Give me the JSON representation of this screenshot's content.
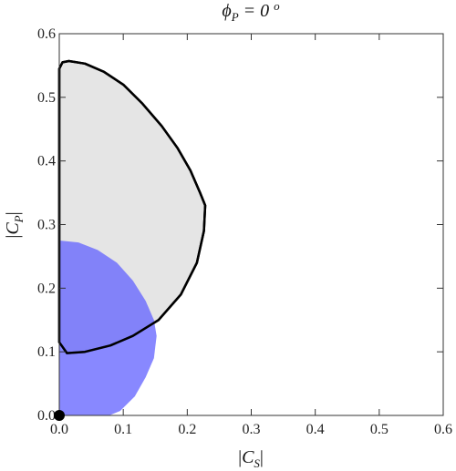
{
  "chart_data": {
    "type": "region",
    "title": "ϕ_P = 0 °",
    "xlabel": "|C_S|",
    "ylabel": "|C_P|",
    "xlim": [
      0,
      0.6
    ],
    "ylim": [
      0,
      0.6
    ],
    "x_ticks": [
      0.0,
      0.1,
      0.2,
      0.3,
      0.4,
      0.5,
      0.6
    ],
    "y_ticks": [
      0.0,
      0.1,
      0.2,
      0.3,
      0.4,
      0.5,
      0.6
    ],
    "x_tick_labels": [
      "0.0",
      "0.1",
      "0.2",
      "0.3",
      "0.4",
      "0.5",
      "0.6"
    ],
    "y_tick_labels": [
      "0.0",
      "0.1",
      "0.2",
      "0.3",
      "0.4",
      "0.5",
      "0.6"
    ],
    "grid": false,
    "series": [
      {
        "kind": "filled-region-outlined",
        "fill": "#e5e5e5",
        "stroke": "#000000",
        "points": [
          [
            0.0,
            0.115
          ],
          [
            0.0,
            0.545
          ],
          [
            0.005,
            0.555
          ],
          [
            0.015,
            0.557
          ],
          [
            0.04,
            0.553
          ],
          [
            0.07,
            0.54
          ],
          [
            0.1,
            0.52
          ],
          [
            0.13,
            0.49
          ],
          [
            0.16,
            0.455
          ],
          [
            0.185,
            0.42
          ],
          [
            0.205,
            0.385
          ],
          [
            0.22,
            0.35
          ],
          [
            0.228,
            0.33
          ],
          [
            0.226,
            0.29
          ],
          [
            0.215,
            0.24
          ],
          [
            0.19,
            0.19
          ],
          [
            0.155,
            0.15
          ],
          [
            0.115,
            0.125
          ],
          [
            0.08,
            0.11
          ],
          [
            0.04,
            0.1
          ],
          [
            0.012,
            0.098
          ]
        ]
      },
      {
        "kind": "filled-region",
        "fill": "#6666ff",
        "opacity": 0.78,
        "points": [
          [
            0.0,
            0.0
          ],
          [
            0.0,
            0.275
          ],
          [
            0.03,
            0.272
          ],
          [
            0.06,
            0.26
          ],
          [
            0.09,
            0.24
          ],
          [
            0.115,
            0.212
          ],
          [
            0.135,
            0.18
          ],
          [
            0.148,
            0.15
          ],
          [
            0.152,
            0.125
          ],
          [
            0.148,
            0.09
          ],
          [
            0.135,
            0.06
          ],
          [
            0.118,
            0.03
          ],
          [
            0.095,
            0.007
          ],
          [
            0.078,
            0.0
          ]
        ]
      },
      {
        "kind": "point",
        "x": 0.0,
        "y": 0.0,
        "color": "#000000"
      }
    ]
  }
}
